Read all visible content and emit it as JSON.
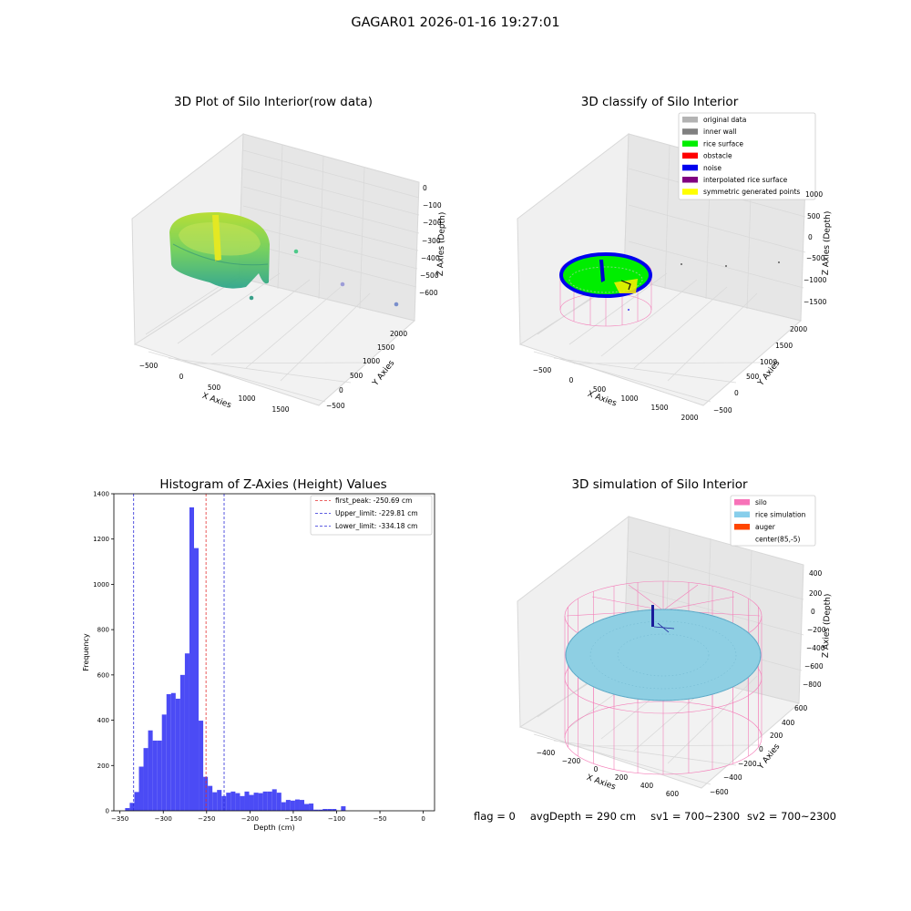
{
  "suptitle": "GAGAR01 2026-01-16 19:27:01",
  "colors": {
    "rice_gradient": [
      "#3ab58a",
      "#b5dd2b"
    ],
    "hist_bar": "#4b4bf5",
    "peak_line": "#e53030",
    "limit_line": "#2b2bd8",
    "silo_mesh": "#f47fb9",
    "rice_sim": "#8ecfe3",
    "auger": "#1a1a9a"
  },
  "panels": {
    "raw": {
      "title": "3D Plot of Silo Interior(row data)",
      "xlabel": "X Axies",
      "ylabel": "Y Axies",
      "zlabel": "Z Axies (Depth)",
      "xticks": [
        "−500",
        "0",
        "500",
        "1000",
        "1500"
      ],
      "yticks": [
        "2000",
        "1500",
        "1000",
        "500",
        "0",
        "−500"
      ],
      "zticks": [
        "0",
        "−100",
        "−200",
        "−300",
        "−400",
        "−500",
        "−600"
      ]
    },
    "classify": {
      "title": "3D classify of Silo Interior",
      "xlabel": "X Axies",
      "ylabel": "Y Axies",
      "zlabel": "Z Axies (Depth)",
      "xticks": [
        "−500",
        "0",
        "500",
        "1000",
        "1500",
        "2000"
      ],
      "yticks": [
        "2000",
        "1500",
        "1000",
        "500",
        "0",
        "−500"
      ],
      "zticks": [
        "1000",
        "500",
        "0",
        "−500",
        "−1000",
        "−1500"
      ],
      "legend": [
        {
          "label": "original data",
          "color": "#b3b3b3"
        },
        {
          "label": "inner wall",
          "color": "#808080"
        },
        {
          "label": "rice surface",
          "color": "#00ee00"
        },
        {
          "label": "obstacle",
          "color": "#ff0000"
        },
        {
          "label": "noise",
          "color": "#0000ee"
        },
        {
          "label": "interpolated rice surface",
          "color": "#800080"
        },
        {
          "label": "symmetric generated points",
          "color": "#ffff00"
        }
      ]
    },
    "simulation": {
      "title": "3D simulation of Silo Interior",
      "xlabel": "X Axies",
      "ylabel": "Y Axies",
      "zlabel": "Z Axies (Depth)",
      "xticks": [
        "−400",
        "−200",
        "0",
        "200",
        "400",
        "600"
      ],
      "yticks": [
        "600",
        "400",
        "200",
        "0",
        "−200",
        "−400",
        "−600"
      ],
      "zticks": [
        "400",
        "200",
        "0",
        "−200",
        "−400",
        "−600",
        "−800"
      ],
      "legend": [
        {
          "label": "silo",
          "color": "#f772b8"
        },
        {
          "label": "rice simulation",
          "color": "#87ceeb"
        },
        {
          "label": "auger",
          "color": "#ff4500"
        },
        {
          "label": "center(85,-5)",
          "color": ""
        }
      ]
    }
  },
  "chart_data": {
    "type": "bar",
    "title": "Histogram of Z-Axies (Height) Values",
    "xlabel": "Depth (cm)",
    "ylabel": "Frequency",
    "xlim": [
      -357,
      13
    ],
    "ylim": [
      0,
      1400
    ],
    "xticks": [
      -350,
      -300,
      -250,
      -200,
      -150,
      -100,
      -50,
      0
    ],
    "yticks": [
      0,
      200,
      400,
      600,
      800,
      1000,
      1200,
      1400
    ],
    "xtick_labels": [
      "−350",
      "−300",
      "−250",
      "−200",
      "−150",
      "−100",
      "−50",
      "0"
    ],
    "bins": {
      "start": -344,
      "width": 5.3,
      "counts": [
        12,
        35,
        83,
        195,
        277,
        355,
        310,
        310,
        425,
        515,
        520,
        495,
        600,
        695,
        1340,
        1160,
        398,
        150,
        110,
        82,
        92,
        65,
        80,
        85,
        78,
        65,
        85,
        70,
        80,
        78,
        85,
        85,
        95,
        80,
        38,
        48,
        45,
        50,
        48,
        30,
        32,
        5,
        5,
        8,
        8,
        8,
        0,
        20
      ]
    },
    "vlines": [
      {
        "x": -250.69,
        "label": "first_peak: -250.69 cm",
        "color": "#e53030"
      },
      {
        "x": -229.81,
        "label": "Upper_limit: -229.81 cm",
        "color": "#2b2bd8"
      },
      {
        "x": -334.18,
        "label": "Lower_limit: -334.18 cm",
        "color": "#2b2bd8"
      }
    ]
  },
  "status": {
    "flag": "flag = 0",
    "avg": "avgDepth = 290 cm",
    "sv1": "sv1 = 700~2300",
    "sv2": "sv2 = 700~2300"
  }
}
